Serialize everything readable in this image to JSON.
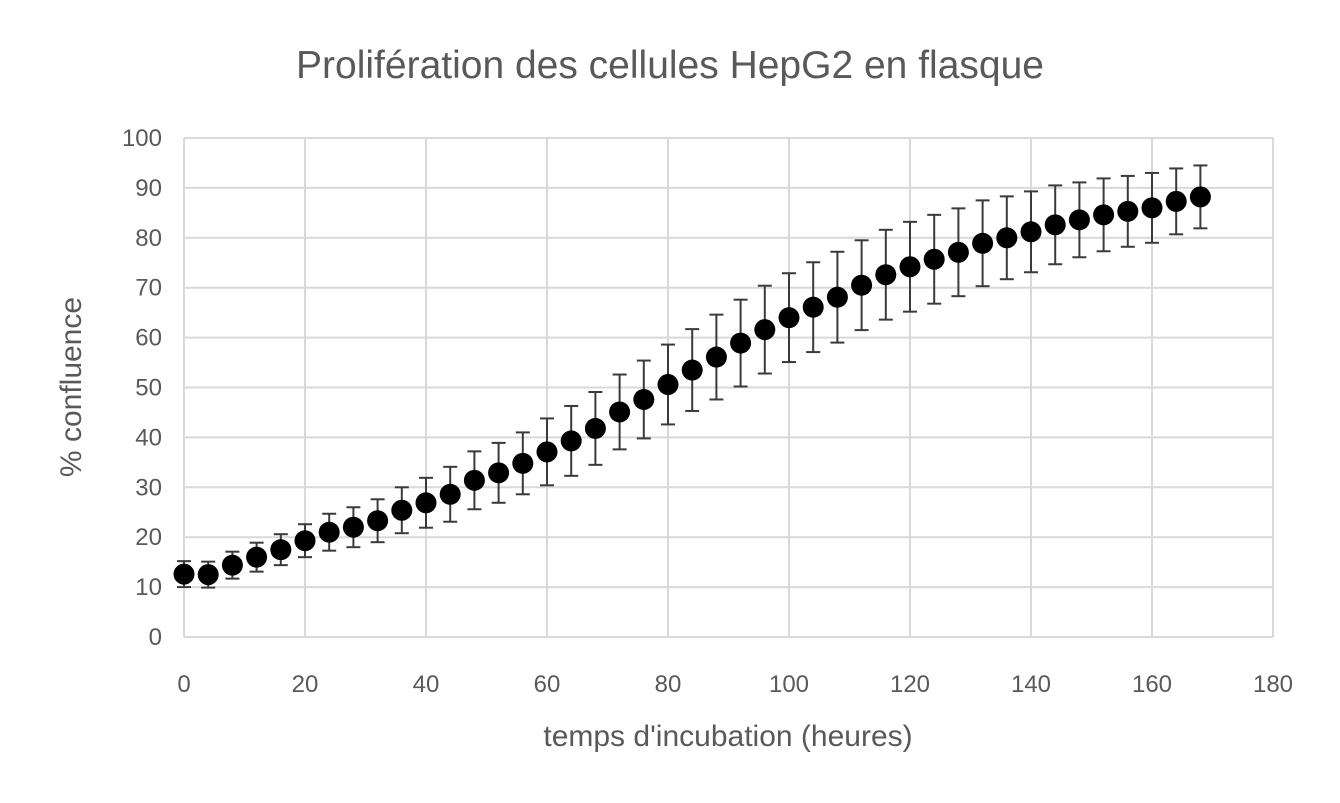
{
  "chart_data": {
    "type": "scatter",
    "title": "Prolifération des cellules HepG2 en flasque",
    "xlabel": "temps d'incubation (heures)",
    "ylabel": "% confluence",
    "xlim": [
      0,
      180
    ],
    "ylim": [
      0,
      100
    ],
    "x_ticks": [
      "0",
      "20",
      "40",
      "60",
      "80",
      "100",
      "120",
      "140",
      "160",
      "180"
    ],
    "y_ticks": [
      "0",
      "10",
      "20",
      "30",
      "40",
      "50",
      "60",
      "70",
      "80",
      "90",
      "100"
    ],
    "grid": true,
    "marker_color": "#000000",
    "error_bar_color": "#3a3a3a",
    "series": [
      {
        "x": [
          0,
          4,
          8,
          12,
          16,
          20,
          24,
          28,
          32,
          36,
          40,
          44,
          48,
          52,
          56,
          60,
          64,
          68,
          72,
          76,
          80,
          84,
          88,
          92,
          96,
          100,
          104,
          108,
          112,
          116,
          120,
          124,
          128,
          132,
          136,
          140,
          144,
          148,
          152,
          156,
          160,
          164,
          168
        ],
        "y": [
          12.6,
          12.5,
          14.4,
          16.0,
          17.5,
          19.3,
          21.0,
          22.0,
          23.3,
          25.4,
          26.9,
          28.6,
          31.4,
          32.9,
          34.8,
          37.1,
          39.3,
          41.8,
          45.1,
          47.6,
          50.6,
          53.5,
          56.1,
          58.9,
          61.6,
          64.0,
          66.1,
          68.1,
          70.5,
          72.6,
          74.2,
          75.7,
          77.1,
          78.9,
          80.0,
          81.2,
          82.6,
          83.6,
          84.6,
          85.3,
          86.0,
          87.3,
          88.2
        ],
        "error": [
          2.6,
          2.6,
          2.7,
          2.9,
          3.1,
          3.3,
          3.7,
          4.0,
          4.3,
          4.6,
          5.0,
          5.5,
          5.8,
          6.0,
          6.2,
          6.7,
          7.0,
          7.3,
          7.5,
          7.8,
          8.0,
          8.2,
          8.5,
          8.7,
          8.8,
          8.9,
          9.0,
          9.1,
          9.0,
          9.0,
          9.0,
          8.9,
          8.8,
          8.6,
          8.3,
          8.1,
          7.9,
          7.5,
          7.3,
          7.1,
          7.0,
          6.6,
          6.3
        ]
      }
    ]
  }
}
